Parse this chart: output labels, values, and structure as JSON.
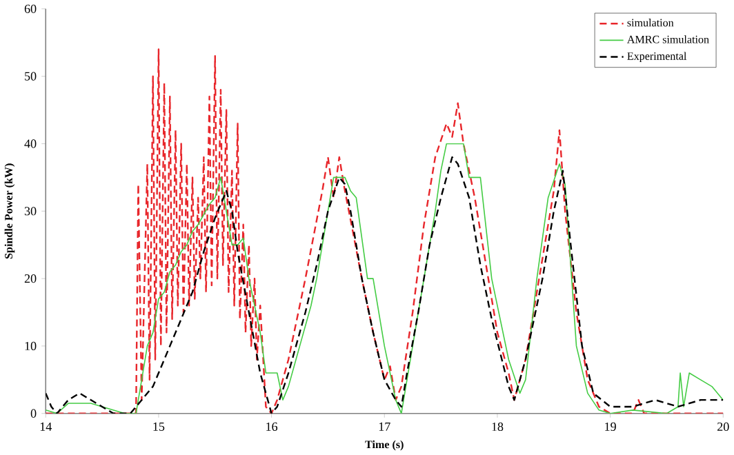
{
  "chart_data": {
    "type": "line",
    "xlabel": "Time (s)",
    "ylabel": "Spindle Power (kW)",
    "xlim": [
      14,
      20
    ],
    "ylim": [
      0,
      60
    ],
    "xticks": [
      14,
      15,
      16,
      17,
      18,
      19,
      20
    ],
    "yticks": [
      0,
      10,
      20,
      30,
      40,
      50,
      60
    ],
    "grid": false,
    "legend": "top right",
    "marker": "none",
    "series": [
      {
        "name": "simulation",
        "color": "#e8262b",
        "line_style": "dashed",
        "x": [
          14,
          14.8,
          14.82,
          14.85,
          14.9,
          14.92,
          14.95,
          14.97,
          15.0,
          15.02,
          15.05,
          15.07,
          15.1,
          15.12,
          15.15,
          15.17,
          15.2,
          15.22,
          15.25,
          15.27,
          15.3,
          15.32,
          15.35,
          15.37,
          15.4,
          15.42,
          15.45,
          15.47,
          15.5,
          15.52,
          15.55,
          15.57,
          15.6,
          15.62,
          15.65,
          15.67,
          15.7,
          15.72,
          15.75,
          15.77,
          15.8,
          15.82,
          15.85,
          15.87,
          15.9,
          15.95,
          16.0,
          16.05,
          16.15,
          16.3,
          16.45,
          16.5,
          16.55,
          16.6,
          16.65,
          16.72,
          16.8,
          16.9,
          17.0,
          17.05,
          17.1,
          17.15,
          17.25,
          17.35,
          17.45,
          17.55,
          17.6,
          17.65,
          17.7,
          17.8,
          17.9,
          18.0,
          18.1,
          18.15,
          18.25,
          18.35,
          18.45,
          18.5,
          18.55,
          18.6,
          18.7,
          18.8,
          18.9,
          19.0,
          19.2,
          19.25,
          19.3,
          20
        ],
        "values": [
          0,
          0,
          34,
          2,
          37,
          5,
          50,
          8,
          54,
          10,
          49,
          12,
          47,
          14,
          42,
          16,
          40,
          15,
          37,
          16,
          35,
          17,
          32,
          20,
          38,
          18,
          47,
          19,
          53,
          20,
          48,
          22,
          45,
          18,
          36,
          16,
          43,
          14,
          28,
          12,
          25,
          10,
          20,
          8,
          16,
          1,
          0,
          2,
          8,
          20,
          33,
          38,
          32,
          38,
          33,
          27,
          20,
          12,
          5,
          7,
          2,
          4,
          15,
          28,
          38,
          43,
          41,
          46,
          40,
          32,
          22,
          12,
          6,
          2,
          8,
          18,
          28,
          33,
          42,
          30,
          15,
          5,
          1,
          0,
          0,
          2,
          0,
          0
        ]
      },
      {
        "name": "AMRC simulation",
        "color": "#44cc44",
        "line_style": "solid",
        "x": [
          14,
          14.1,
          14.2,
          14.4,
          14.5,
          14.7,
          14.8,
          14.85,
          14.9,
          14.95,
          15.0,
          15.05,
          15.1,
          15.15,
          15.2,
          15.25,
          15.3,
          15.35,
          15.45,
          15.5,
          15.55,
          15.6,
          15.65,
          15.7,
          15.75,
          15.8,
          15.9,
          15.95,
          16.05,
          16.1,
          16.15,
          16.25,
          16.35,
          16.4,
          16.5,
          16.55,
          16.65,
          16.7,
          16.75,
          16.85,
          16.9,
          17.0,
          17.1,
          17.15,
          17.25,
          17.35,
          17.45,
          17.5,
          17.55,
          17.7,
          17.75,
          17.85,
          17.95,
          18.1,
          18.2,
          18.25,
          18.35,
          18.45,
          18.55,
          18.6,
          18.7,
          18.8,
          18.9,
          19.0,
          19.2,
          19.5,
          19.6,
          19.62,
          19.65,
          19.7,
          19.8,
          19.9,
          20.0
        ],
        "values": [
          0.5,
          0,
          1.5,
          1.5,
          1,
          0,
          0,
          5,
          10,
          12,
          17,
          18,
          21,
          22,
          24,
          25,
          27,
          28,
          31,
          32,
          35,
          30,
          25,
          25,
          26,
          20,
          12,
          6,
          6,
          2,
          4,
          10,
          16,
          20,
          30,
          35,
          35,
          33,
          32,
          20,
          20,
          10,
          2,
          0,
          10,
          20,
          30,
          36,
          40,
          40,
          35,
          35,
          20,
          8,
          3,
          5,
          20,
          32,
          37,
          34,
          10,
          3,
          0.5,
          0,
          0.5,
          0,
          1,
          6,
          1,
          6,
          5,
          4,
          2
        ]
      },
      {
        "name": "Experimental",
        "color": "#000000",
        "line_style": "dashed",
        "x": [
          14,
          14.05,
          14.1,
          14.2,
          14.3,
          14.4,
          14.5,
          14.6,
          14.75,
          14.85,
          14.95,
          15.0,
          15.1,
          15.2,
          15.3,
          15.4,
          15.5,
          15.6,
          15.65,
          15.7,
          15.8,
          15.9,
          16.0,
          16.05,
          16.15,
          16.3,
          16.4,
          16.5,
          16.6,
          16.65,
          16.7,
          16.8,
          16.9,
          17.0,
          17.1,
          17.15,
          17.2,
          17.3,
          17.4,
          17.5,
          17.6,
          17.65,
          17.75,
          17.85,
          17.95,
          18.1,
          18.15,
          18.25,
          18.4,
          18.5,
          18.58,
          18.65,
          18.75,
          18.85,
          19.0,
          19.2,
          19.4,
          19.6,
          19.8,
          20.0
        ],
        "values": [
          3,
          1,
          0,
          2,
          3,
          2,
          1,
          0,
          0,
          2,
          4,
          6,
          10,
          14,
          18,
          24,
          29,
          33,
          30,
          24,
          15,
          6,
          0,
          1,
          6,
          15,
          22,
          30,
          35,
          34,
          30,
          20,
          12,
          5,
          2,
          1,
          6,
          15,
          25,
          32,
          38,
          37,
          32,
          22,
          14,
          4,
          2,
          8,
          20,
          30,
          36,
          25,
          10,
          3,
          1,
          1,
          2,
          1,
          2,
          2
        ]
      }
    ]
  }
}
